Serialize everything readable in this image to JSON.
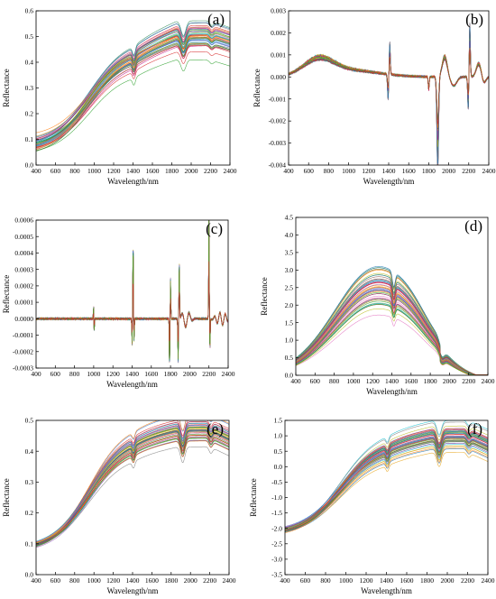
{
  "chart_data": [
    {
      "panel": "(a)",
      "type": "line",
      "shape": "raw",
      "xlabel": "Wavelength/nm",
      "ylabel": "Reflectance",
      "xlim": [
        400,
        2400
      ],
      "ylim": [
        0,
        0.6
      ],
      "xticks": [
        400,
        600,
        800,
        1000,
        1200,
        1400,
        1600,
        1800,
        2000,
        2200,
        2400
      ],
      "yticks": [
        0,
        0.1,
        0.2,
        0.3,
        0.4,
        0.5,
        0.6
      ],
      "ytick_labels": [
        "0.0",
        "0.1",
        "0.2",
        "0.3",
        "0.4",
        "0.5",
        "0.6"
      ],
      "series_center": {
        "x": [
          400,
          600,
          800,
          1000,
          1200,
          1400,
          1600,
          1800,
          1900,
          2000,
          2200,
          2400
        ],
        "y": [
          0.08,
          0.13,
          0.22,
          0.31,
          0.37,
          0.4,
          0.42,
          0.44,
          0.41,
          0.44,
          0.43,
          0.4
        ]
      },
      "grid": false,
      "legend": "none"
    },
    {
      "panel": "(b)",
      "type": "line",
      "shape": "first-derivative",
      "xlabel": "Wavelength/nm",
      "ylabel": "Reflectance",
      "xlim": [
        400,
        2400
      ],
      "ylim": [
        -0.004,
        0.003
      ],
      "xticks": [
        400,
        600,
        800,
        1000,
        1200,
        1400,
        1600,
        1800,
        2000,
        2200,
        2400
      ],
      "yticks": [
        -0.004,
        -0.003,
        -0.002,
        -0.001,
        0,
        0.001,
        0.002,
        0.003
      ],
      "ytick_labels": [
        "-0.004",
        "-0.003",
        "-0.002",
        "-0.001",
        "0.000",
        "0.001",
        "0.002",
        "0.003"
      ],
      "grid": false,
      "legend": "none"
    },
    {
      "panel": "(c)",
      "type": "line",
      "shape": "second-derivative",
      "xlabel": "Wavelength/nm",
      "ylabel": "Reflectance",
      "xlim": [
        400,
        2400
      ],
      "ylim": [
        -0.0003,
        0.0006
      ],
      "xticks": [
        400,
        600,
        800,
        1000,
        1200,
        1400,
        1600,
        1800,
        2000,
        2200,
        2400
      ],
      "yticks": [
        -0.0003,
        -0.0002,
        -0.0001,
        0,
        0.0001,
        0.0002,
        0.0003,
        0.0004,
        0.0005,
        0.0006
      ],
      "ytick_labels": [
        "-0.0003",
        "-0.0002",
        "-0.0001",
        "0.0000",
        "0.0001",
        "0.0002",
        "0.0003",
        "0.0004",
        "0.0005",
        "0.0006"
      ],
      "grid": false,
      "legend": "none"
    },
    {
      "panel": "(d)",
      "type": "line",
      "shape": "hump",
      "xlabel": "Wavelength/nm",
      "ylabel": "Reflectance",
      "xlim": [
        400,
        2400
      ],
      "ylim": [
        0,
        4.5
      ],
      "xticks": [
        400,
        600,
        800,
        1000,
        1200,
        1400,
        1600,
        1800,
        2000,
        2200,
        2400
      ],
      "yticks": [
        0,
        0.5,
        1,
        1.5,
        2,
        2.5,
        3,
        3.5,
        4,
        4.5
      ],
      "ytick_labels": [
        "0.0",
        "0.5",
        "1.0",
        "1.5",
        "2.0",
        "2.5",
        "3.0",
        "3.5",
        "4.0",
        "4.5"
      ],
      "grid": false,
      "legend": "none"
    },
    {
      "panel": "(e)",
      "type": "line",
      "shape": "raw-normalized",
      "xlabel": "Wavelength/nm",
      "ylabel": "Reflectance",
      "xlim": [
        400,
        2400
      ],
      "ylim": [
        0,
        0.5
      ],
      "xticks": [
        400,
        600,
        800,
        1000,
        1200,
        1400,
        1600,
        1800,
        2000,
        2200,
        2400
      ],
      "yticks": [
        0,
        0.1,
        0.2,
        0.3,
        0.4,
        0.5
      ],
      "ytick_labels": [
        "0.0",
        "0.1",
        "0.2",
        "0.3",
        "0.4",
        "0.5"
      ],
      "grid": false,
      "legend": "none"
    },
    {
      "panel": "(f)",
      "type": "line",
      "shape": "standardized",
      "xlabel": "Wavelength/nm",
      "ylabel": "Reflectance",
      "xlim": [
        400,
        2400
      ],
      "ylim": [
        -3.5,
        1.5
      ],
      "xticks": [
        400,
        600,
        800,
        1000,
        1200,
        1400,
        1600,
        1800,
        2000,
        2200,
        2400
      ],
      "yticks": [
        -3.5,
        -3,
        -2.5,
        -2,
        -1.5,
        -1,
        -0.5,
        0,
        0.5,
        1,
        1.5
      ],
      "ytick_labels": [
        "-3.5",
        "-3.0",
        "-2.5",
        "-2.0",
        "-1.5",
        "-1.0",
        "-0.5",
        "0.0",
        "0.5",
        "1.0",
        "1.5"
      ],
      "grid": false,
      "legend": "none"
    }
  ],
  "series_palette": [
    "#1f77b4",
    "#ff7f0e",
    "#2ca02c",
    "#d62728",
    "#9467bd",
    "#8c564b",
    "#e377c2",
    "#7f7f7f",
    "#bcbd22",
    "#17becf",
    "#3b7dd8",
    "#e8a317",
    "#2e8b57",
    "#c71585"
  ]
}
